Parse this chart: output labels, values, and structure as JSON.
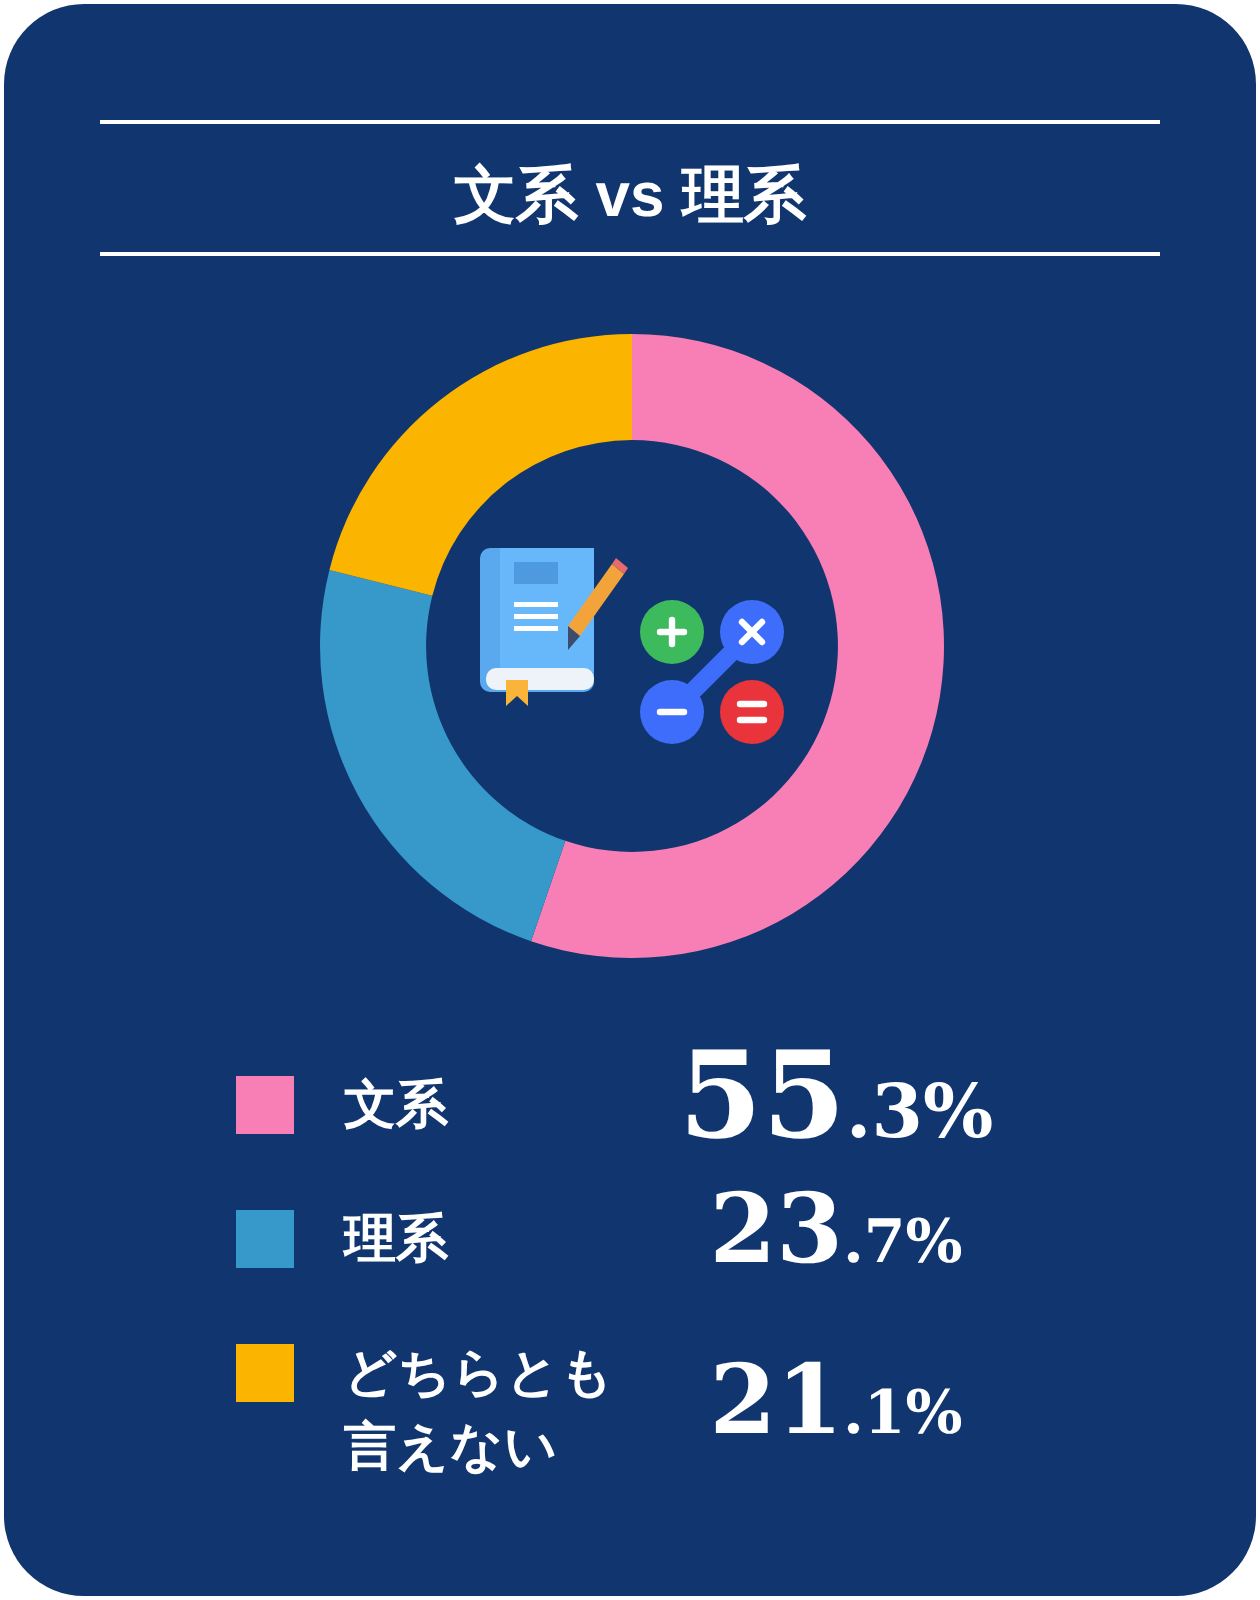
{
  "chart_data": {
    "type": "donut",
    "title": "文系 vs 理系",
    "categories": [
      "文系",
      "理系",
      "どちらとも言えない"
    ],
    "values": [
      55.3,
      23.7,
      21.1
    ],
    "colors": [
      "#f77fb5",
      "#3799c9",
      "#fbb400"
    ],
    "value_labels": [
      "55.3%",
      "23.7%",
      "21.1%"
    ],
    "legend": "bottom"
  }
}
